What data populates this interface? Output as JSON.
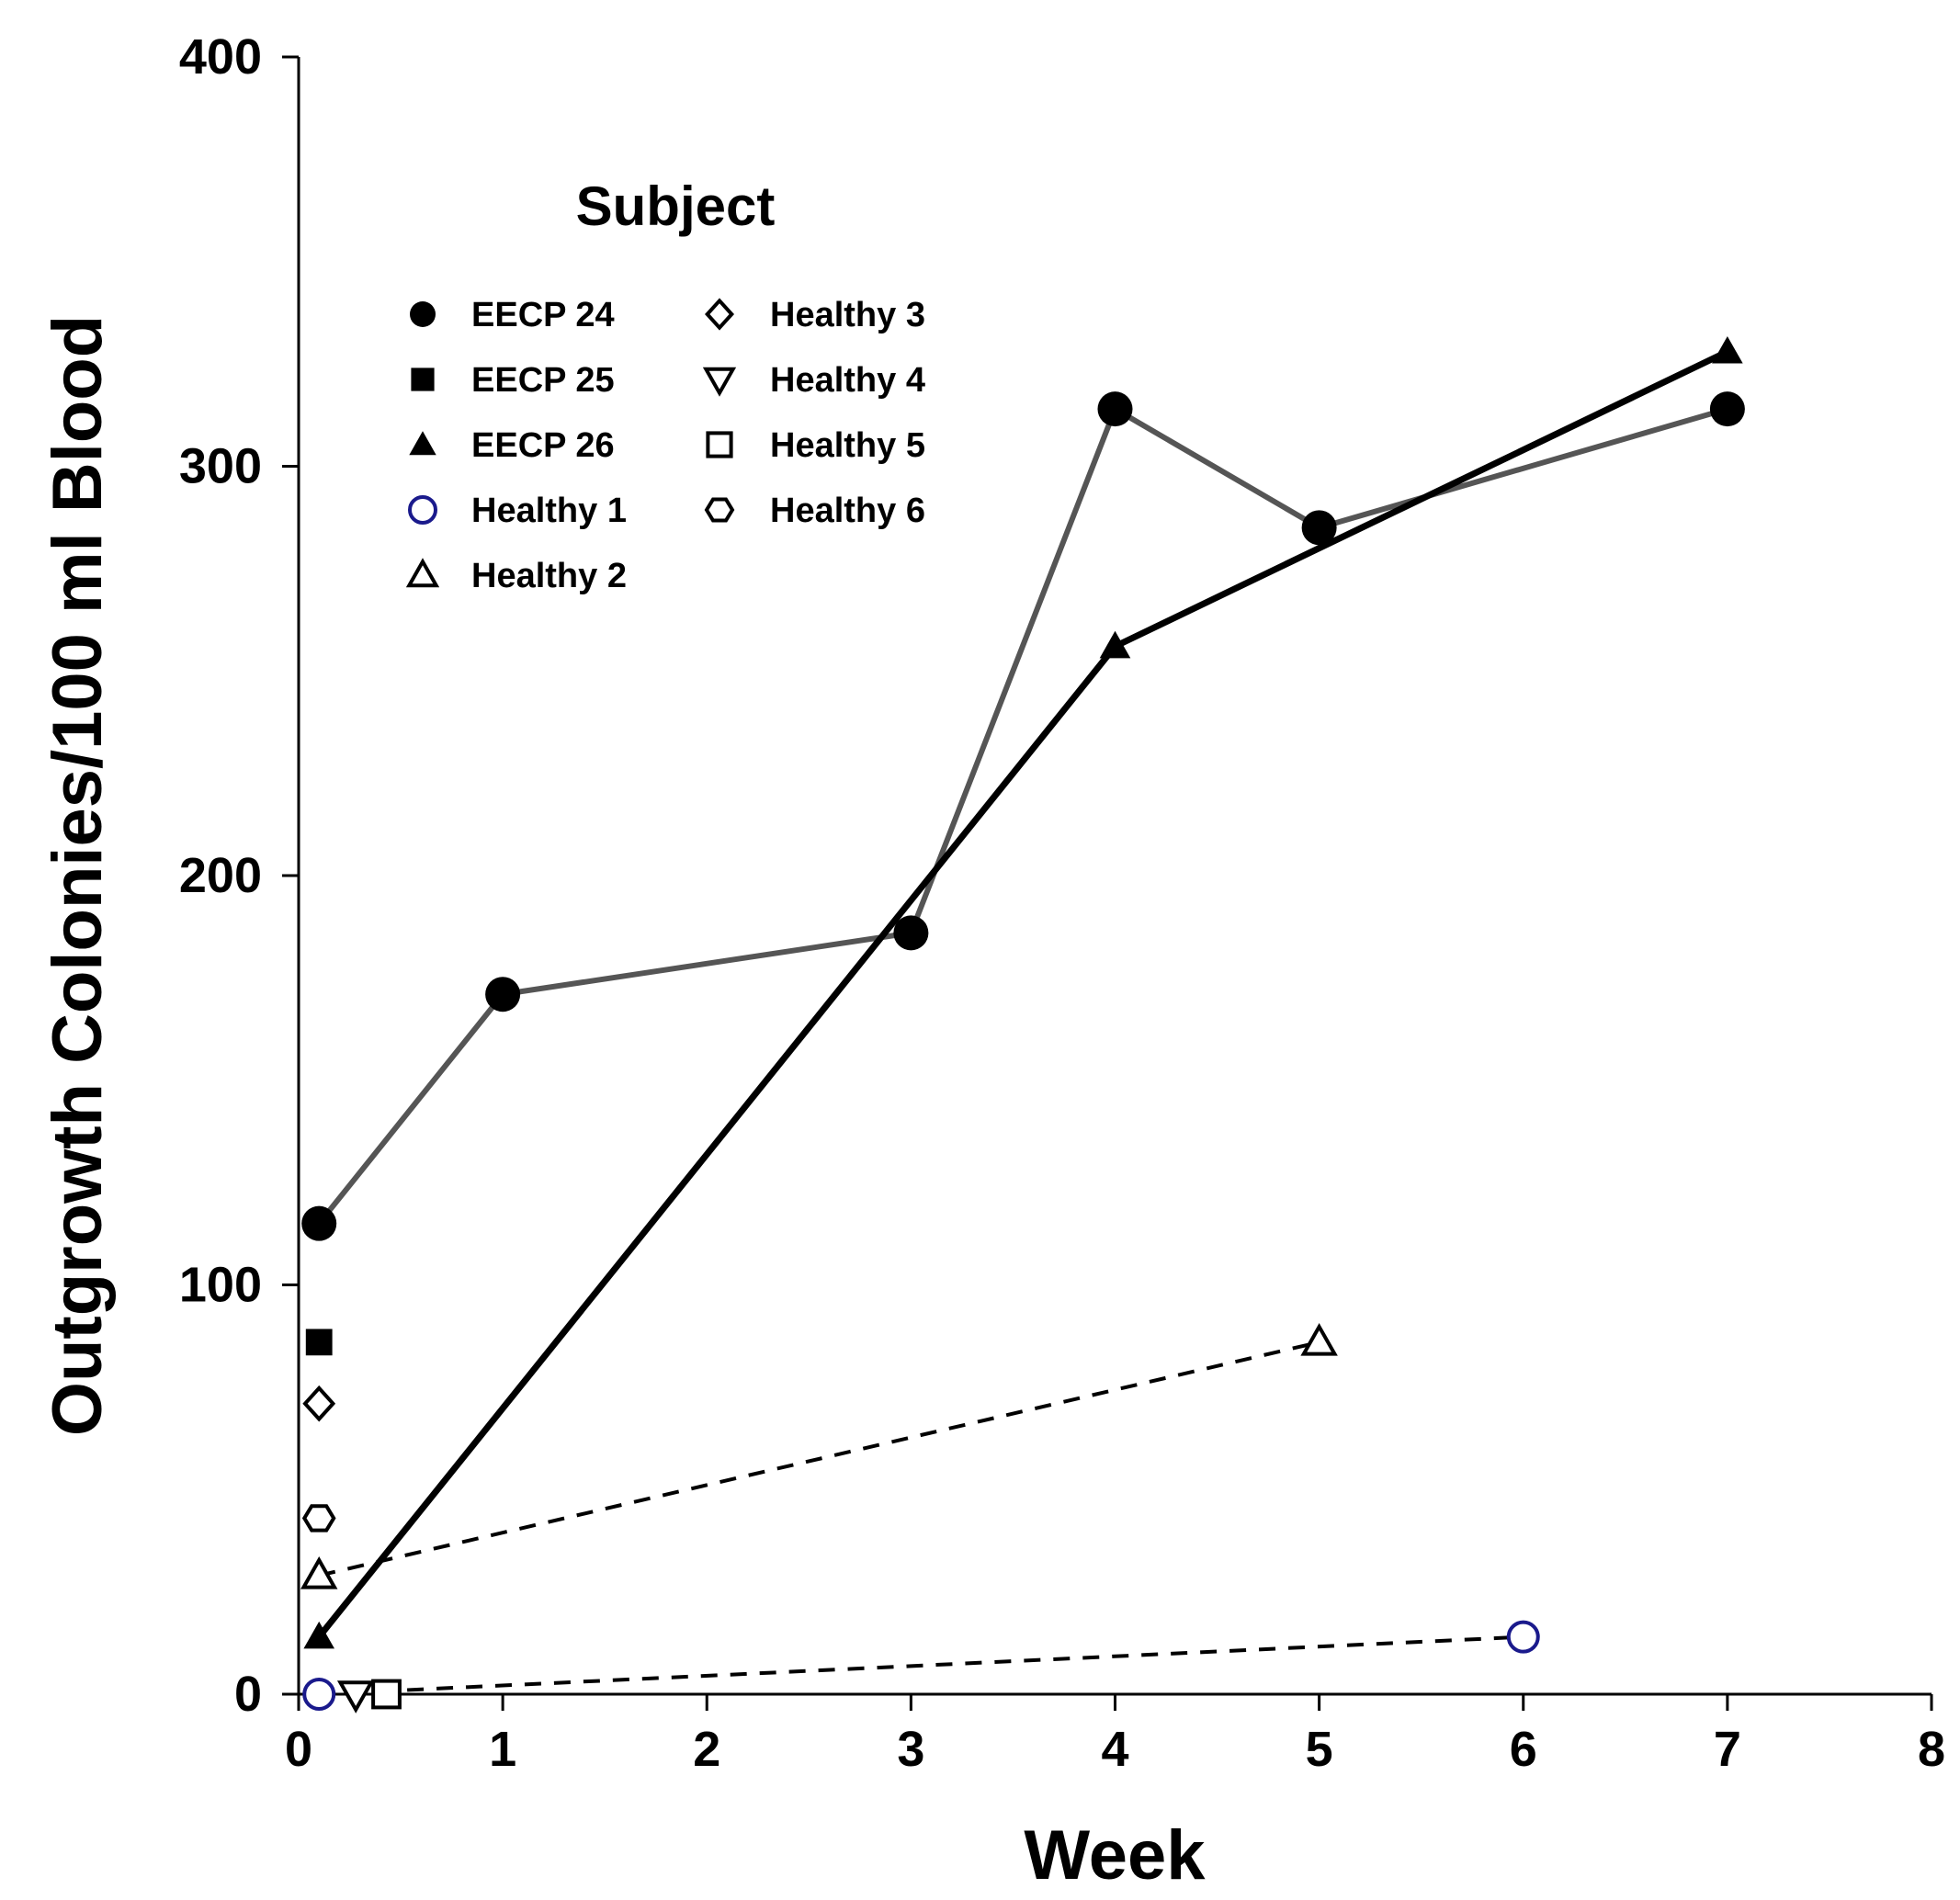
{
  "chart_data": {
    "type": "scatter",
    "title": "",
    "xlabel": "Week",
    "ylabel": "Outgrowth Colonies/100 ml Blood",
    "xlim": [
      0,
      8
    ],
    "ylim": [
      0,
      400
    ],
    "xticks": [
      "0",
      "1",
      "2",
      "3",
      "4",
      "5",
      "6",
      "7",
      "8"
    ],
    "yticks": [
      "0",
      "100",
      "200",
      "300",
      "400"
    ],
    "xtick_values": [
      0,
      1,
      2,
      3,
      4,
      5,
      6,
      7,
      8
    ],
    "ytick_values": [
      0,
      100,
      200,
      300,
      400
    ],
    "grid": false,
    "legend_title": "Subject",
    "legend_placement": "top-left",
    "series": [
      {
        "name": "EECP 24",
        "marker": "filled-circle",
        "color": "#000000",
        "line": "solid",
        "line_color": "#555555",
        "x": [
          0.1,
          1,
          3,
          4,
          5,
          7
        ],
        "y": [
          115,
          171,
          186,
          314,
          285,
          314
        ]
      },
      {
        "name": "EECP 25",
        "marker": "filled-square",
        "color": "#000000",
        "line": "none",
        "x": [
          0.1
        ],
        "y": [
          86
        ]
      },
      {
        "name": "EECP 26",
        "marker": "filled-triangle",
        "color": "#000000",
        "line": "solid",
        "line_color": "#000000",
        "x": [
          0.1,
          4,
          7
        ],
        "y": [
          14,
          256,
          328
        ]
      },
      {
        "name": "Healthy 1",
        "marker": "open-circle",
        "color": "#1a1a8c",
        "line": "dashed",
        "line_color": "#000000",
        "x": [
          0.1,
          6
        ],
        "y": [
          0,
          14
        ]
      },
      {
        "name": "Healthy 2",
        "marker": "open-triangle",
        "color": "#000000",
        "line": "dashed",
        "line_color": "#000000",
        "x": [
          0.1,
          5
        ],
        "y": [
          29,
          86
        ]
      },
      {
        "name": "Healthy 3",
        "marker": "open-diamond",
        "color": "#000000",
        "line": "none",
        "x": [
          0.1
        ],
        "y": [
          71
        ]
      },
      {
        "name": "Healthy 4",
        "marker": "open-inverted-triangle",
        "color": "#000000",
        "line": "none",
        "x": [
          0.28
        ],
        "y": [
          0
        ]
      },
      {
        "name": "Healthy 5",
        "marker": "open-square",
        "color": "#000000",
        "line": "none",
        "x": [
          0.43
        ],
        "y": [
          0
        ]
      },
      {
        "name": "Healthy 6",
        "marker": "open-hexagon",
        "color": "#000000",
        "line": "none",
        "x": [
          0.1
        ],
        "y": [
          43
        ]
      }
    ],
    "legend_columns": [
      [
        "EECP 24",
        "EECP 25",
        "EECP 26",
        "Healthy 1",
        "Healthy 2"
      ],
      [
        "Healthy 3",
        "Healthy 4",
        "Healthy 5",
        "Healthy 6"
      ]
    ]
  }
}
